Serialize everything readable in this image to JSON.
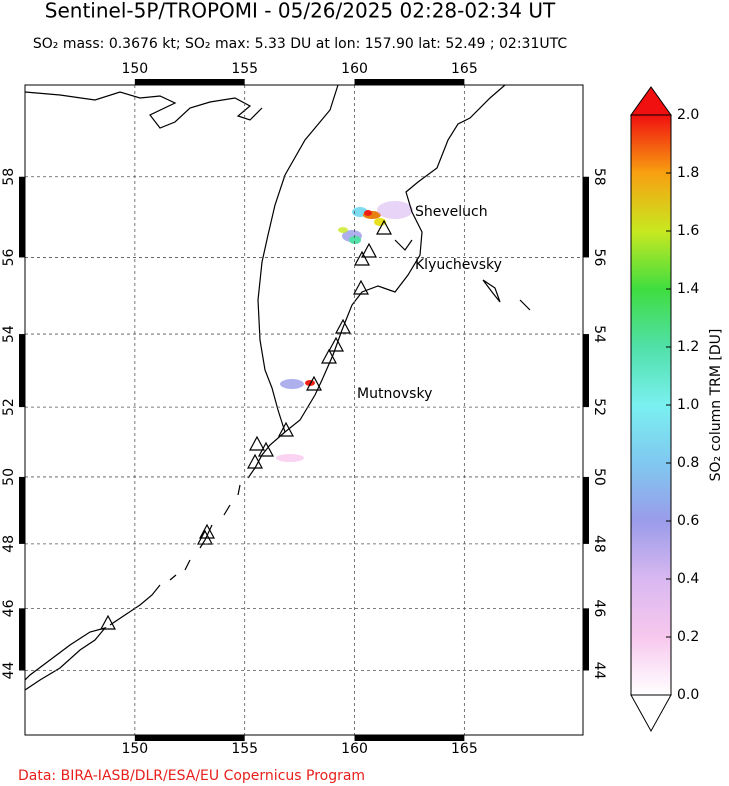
{
  "header": {
    "title": "Sentinel-5P/TROPOMI - 05/26/2025 02:28-02:34 UT",
    "subtitle": "SO₂ mass: 0.3676 kt; SO₂ max: 5.33 DU at lon: 157.90 lat: 52.49 ; 02:31UTC"
  },
  "map": {
    "projection": "mercator",
    "lonlim": [
      145,
      170.4
    ],
    "latlim": [
      41.85,
      60.05
    ],
    "lon_ticks": [
      150,
      155,
      160,
      165
    ],
    "lat_ticks": [
      44,
      46,
      48,
      50,
      52,
      54,
      56,
      58
    ],
    "grid": true,
    "volcanoes": [
      "Sheveluch",
      "Klyuchevsky",
      "Mutnovsky"
    ]
  },
  "colorbar": {
    "label": "SO₂ column TRM [DU]",
    "lim": [
      0,
      2
    ],
    "ticks": [
      {
        "value": 0,
        "label": "0.0"
      },
      {
        "value": 0.2,
        "label": "0.2"
      },
      {
        "value": 0.4,
        "label": "0.4"
      },
      {
        "value": 0.6,
        "label": "0.6"
      },
      {
        "value": 0.8,
        "label": "0.8"
      },
      {
        "value": 1,
        "label": "1.0"
      },
      {
        "value": 1.2,
        "label": "1.2"
      },
      {
        "value": 1.4,
        "label": "1.4"
      },
      {
        "value": 1.6,
        "label": "1.6"
      },
      {
        "value": 1.8,
        "label": "1.8"
      },
      {
        "value": 2,
        "label": "2.0"
      }
    ],
    "colors": [
      "#ffffff",
      "#f7c8ee",
      "#d9b8f0",
      "#9a9cea",
      "#80c8f0",
      "#7af0f0",
      "#50e0a8",
      "#40dd40",
      "#c8e820",
      "#f8a010",
      "#f01010"
    ]
  },
  "footer": "Data: BIRA-IASB/DLR/ESA/EU Copernicus Program"
}
